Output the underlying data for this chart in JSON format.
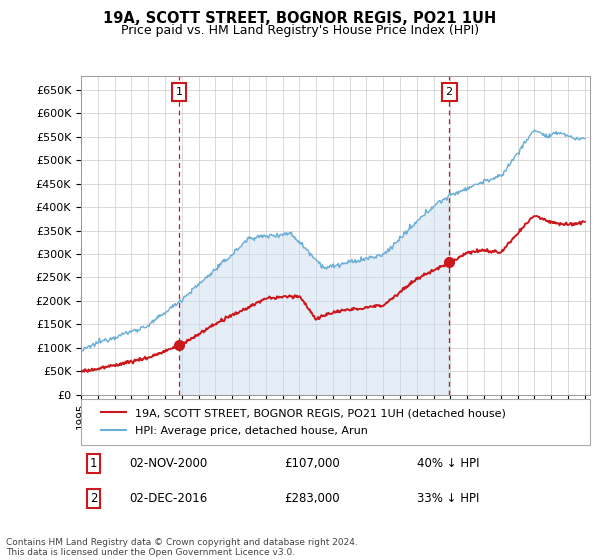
{
  "title": "19A, SCOTT STREET, BOGNOR REGIS, PO21 1UH",
  "subtitle": "Price paid vs. HM Land Registry's House Price Index (HPI)",
  "ylim": [
    0,
    680000
  ],
  "yticks": [
    0,
    50000,
    100000,
    150000,
    200000,
    250000,
    300000,
    350000,
    400000,
    450000,
    500000,
    550000,
    600000,
    650000
  ],
  "ytick_labels": [
    "£0",
    "£50K",
    "£100K",
    "£150K",
    "£200K",
    "£250K",
    "£300K",
    "£350K",
    "£400K",
    "£450K",
    "£500K",
    "£550K",
    "£600K",
    "£650K"
  ],
  "hpi_color": "#6baed6",
  "hpi_fill_color": "#c6dbef",
  "price_color": "#cb181d",
  "vline_color": "#cb181d",
  "marker_color": "#cb181d",
  "annotation_box_color": "#cb181d",
  "transaction1": {
    "date_num": 2000.84,
    "price": 107000,
    "label": "1",
    "date_str": "02-NOV-2000",
    "pct": "40% ↓ HPI"
  },
  "transaction2": {
    "date_num": 2016.92,
    "price": 283000,
    "label": "2",
    "date_str": "02-DEC-2016",
    "pct": "33% ↓ HPI"
  },
  "legend_label_price": "19A, SCOTT STREET, BOGNOR REGIS, PO21 1UH (detached house)",
  "legend_label_hpi": "HPI: Average price, detached house, Arun",
  "footnote": "Contains HM Land Registry data © Crown copyright and database right 2024.\nThis data is licensed under the Open Government Licence v3.0.",
  "grid_color": "#cccccc",
  "background_color": "#ffffff",
  "xlim_start": 1995,
  "xlim_end": 2025.3
}
